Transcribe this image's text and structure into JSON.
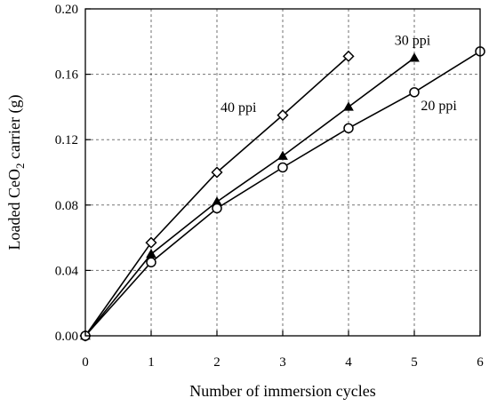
{
  "chart_data": {
    "type": "line",
    "title": "",
    "xlabel": "Number of immersion cycles",
    "ylabel_main": "Loaded CeO",
    "ylabel_sub": "2",
    "ylabel_tail": " carrier (g)",
    "xlim": [
      0,
      6
    ],
    "ylim": [
      0,
      0.2
    ],
    "x_ticks": [
      0,
      1,
      2,
      3,
      4,
      5,
      6
    ],
    "x_tick_labels": [
      "0",
      "1",
      "2",
      "3",
      "4",
      "5",
      "6"
    ],
    "y_ticks": [
      0,
      0.04,
      0.08,
      0.12,
      0.16,
      0.2
    ],
    "y_tick_labels": [
      "0.00",
      "0.04",
      "0.08",
      "0.12",
      "0.16",
      "0.20"
    ],
    "grid": true,
    "series": [
      {
        "name": "40 ppi",
        "marker": "diamond-open",
        "x": [
          0,
          1,
          2,
          3,
          4
        ],
        "values": [
          0,
          0.057,
          0.1,
          0.135,
          0.171
        ]
      },
      {
        "name": "30 ppi",
        "marker": "triangle-filled",
        "x": [
          0,
          1,
          2,
          3,
          4,
          5
        ],
        "values": [
          0,
          0.05,
          0.082,
          0.11,
          0.14,
          0.17
        ]
      },
      {
        "name": "20 ppi",
        "marker": "circle-open",
        "x": [
          0,
          1,
          2,
          3,
          4,
          5,
          6
        ],
        "values": [
          0,
          0.045,
          0.078,
          0.103,
          0.127,
          0.149,
          0.174
        ]
      }
    ]
  }
}
